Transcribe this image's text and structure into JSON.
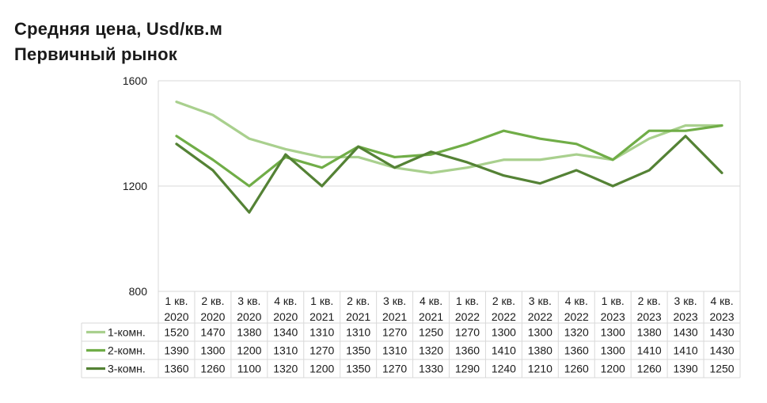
{
  "title": "Средняя цена, Usd/кв.м",
  "subtitle": "Первичный рынок",
  "chart_data": {
    "type": "line",
    "title": "Средняя цена, Usd/кв.м",
    "subtitle": "Первичный рынок",
    "categories": [
      [
        "1 кв.",
        "2020"
      ],
      [
        "2 кв.",
        "2020"
      ],
      [
        "3 кв.",
        "2020"
      ],
      [
        "4 кв.",
        "2020"
      ],
      [
        "1 кв.",
        "2021"
      ],
      [
        "2 кв.",
        "2021"
      ],
      [
        "3 кв.",
        "2021"
      ],
      [
        "4 кв.",
        "2021"
      ],
      [
        "1 кв.",
        "2022"
      ],
      [
        "2 кв.",
        "2022"
      ],
      [
        "3 кв.",
        "2022"
      ],
      [
        "4 кв.",
        "2022"
      ],
      [
        "1 кв.",
        "2023"
      ],
      [
        "2 кв.",
        "2023"
      ],
      [
        "3 кв.",
        "2023"
      ],
      [
        "4 кв.",
        "2023"
      ]
    ],
    "yticks": [
      "800",
      "1200",
      "1600"
    ],
    "ylim": [
      800,
      1600
    ],
    "grid": true,
    "legend": "data-table",
    "series": [
      {
        "name": "1-комн.",
        "color": "#a9d08e",
        "values": [
          1520,
          1470,
          1380,
          1340,
          1310,
          1310,
          1270,
          1250,
          1270,
          1300,
          1300,
          1320,
          1300,
          1380,
          1430,
          1430
        ]
      },
      {
        "name": "2-комн.",
        "color": "#70ad47",
        "values": [
          1390,
          1300,
          1200,
          1310,
          1270,
          1350,
          1310,
          1320,
          1360,
          1410,
          1380,
          1360,
          1300,
          1410,
          1410,
          1430
        ]
      },
      {
        "name": "3-комн.",
        "color": "#548235",
        "values": [
          1360,
          1260,
          1100,
          1320,
          1200,
          1350,
          1270,
          1330,
          1290,
          1240,
          1210,
          1260,
          1200,
          1260,
          1390,
          1250
        ]
      }
    ]
  }
}
